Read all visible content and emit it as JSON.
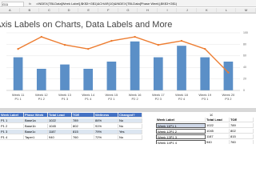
{
  "window": {
    "name_box": "G11",
    "fx": "fx",
    "formula": "=INDEX(TBLData[Week Label],$K$3+G$1)&CHAR(10)&INDEX(TBLData[Phase Week],$K$3+G$1)"
  },
  "columns": [
    "A",
    "B",
    "C",
    "D",
    "E",
    "F",
    "G",
    "H",
    "I",
    "J",
    "K",
    "L",
    "M"
  ],
  "chart_data": {
    "type": "bar",
    "title": "Axis Labels on Charts, Data Labels and More",
    "categories": [
      "Week 11",
      "Week 12",
      "Week 13",
      "Week 14",
      "Week 15",
      "Week 16",
      "Week 17",
      "Week 18",
      "Week 19",
      "Week 20"
    ],
    "category_sublabels": [
      "P1 1",
      "P1 2",
      "P1 3",
      "P1 4",
      "P2 1",
      "P2 2",
      "P2 3",
      "P2 4",
      "P3 1",
      "P3 2"
    ],
    "ylim": [
      0,
      2000
    ],
    "y2lim": [
      0,
      100
    ],
    "y2ticks": [
      0,
      20,
      40,
      60,
      80,
      100
    ],
    "series": [
      {
        "name": "Total Lead",
        "color": "#5b8fc7",
        "values": [
          1150,
          750,
          900,
          750,
          1000,
          1700,
          1150,
          1550,
          1150,
          1000
        ]
      },
      {
        "name": "Wellness",
        "color": "#ed7d31",
        "axis": "y2",
        "values": [
          72,
          93,
          79,
          72,
          86,
          93,
          79,
          86,
          72,
          31
        ]
      }
    ]
  },
  "table": {
    "header": [
      "Week Label",
      "Phase Week",
      "Total Lead",
      "TOE",
      "Wellness",
      "Changed?"
    ],
    "rows": [
      [
        "P1 1",
        "Base1a",
        "1022",
        "789",
        "84%",
        "No"
      ],
      [
        "P1 2",
        "Base1b",
        "1045",
        "802",
        "91%",
        "No"
      ],
      [
        "P1 3",
        "Base1c",
        "1187",
        "815",
        "79%",
        "Yes"
      ],
      [
        "P1 4",
        "Taper1",
        "940",
        "760",
        "72%",
        "No"
      ]
    ]
  },
  "side_list": {
    "number": "10",
    "header": [
      "Week Label",
      "Total Lead",
      "TOE"
    ],
    "rows": [
      [
        "Week 11P1 1",
        "1022",
        "789"
      ],
      [
        "Week 12P1 2",
        "1045",
        "802"
      ],
      [
        "Week 13P1 3",
        "1187",
        "815"
      ],
      [
        "Week 14P1 4",
        "940",
        "760"
      ]
    ]
  }
}
